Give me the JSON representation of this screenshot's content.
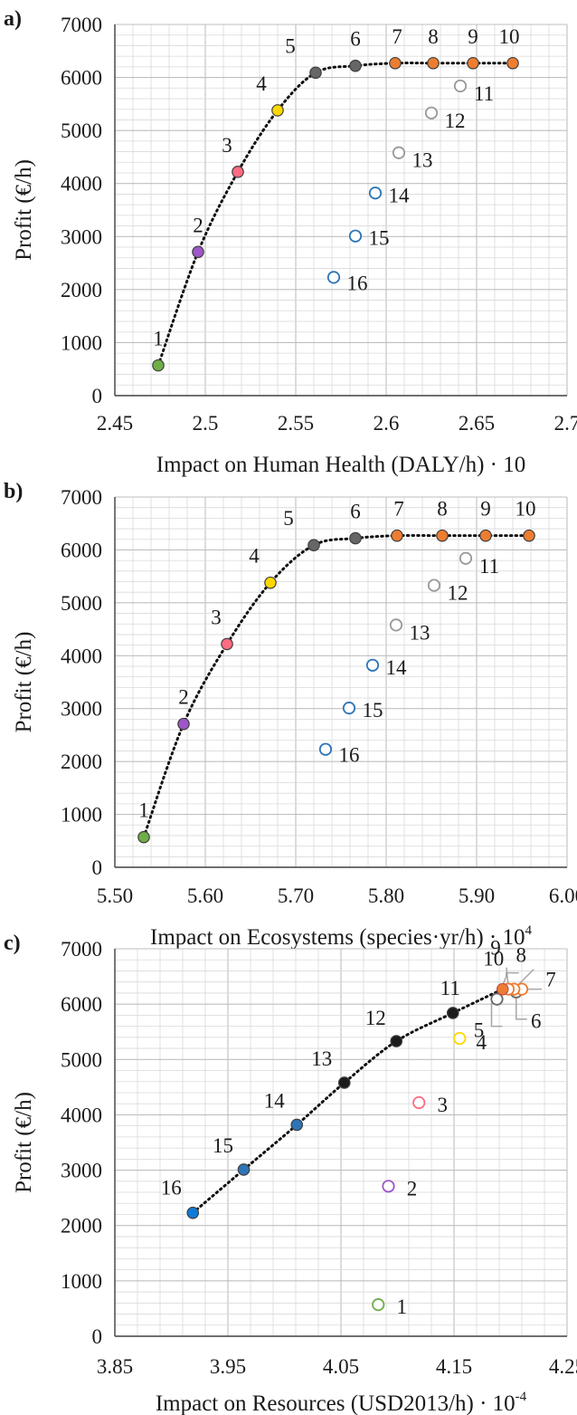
{
  "chart_data": [
    {
      "type": "scatter",
      "panel_label": "a)",
      "title": "",
      "xlabel": "Impact on Human Health (DALY/h) · 10",
      "ylabel": "Profit (€/h)",
      "xlim": [
        2.45,
        2.7
      ],
      "ylim": [
        0,
        7000
      ],
      "xticks": [
        "2.45",
        "2.5",
        "2.55",
        "2.6",
        "2.65",
        "2.7"
      ],
      "yticks": [
        "0",
        "1000",
        "2000",
        "3000",
        "4000",
        "5000",
        "6000",
        "7000"
      ],
      "grid": true,
      "series": [
        {
          "x": [
            2.474,
            2.496,
            2.518,
            2.54,
            2.561,
            2.583,
            2.605,
            2.626,
            2.648,
            2.67,
            2.641,
            2.625,
            2.607,
            2.594,
            2.583,
            2.571
          ],
          "y": [
            570,
            2710,
            4220,
            5380,
            6090,
            6220,
            6270,
            6270,
            6270,
            6270,
            5840,
            5330,
            4580,
            3820,
            3010,
            2230
          ],
          "labels": [
            "1",
            "2",
            "3",
            "4",
            "5",
            "6",
            "7",
            "8",
            "9",
            "10",
            "11",
            "12",
            "13",
            "14",
            "15",
            "16"
          ]
        }
      ],
      "trend_points": 10
    },
    {
      "type": "scatter",
      "panel_label": "b)",
      "title": "",
      "xlabel": "Impact on Ecosystems (species·yr/h) · 10",
      "xlabel_sup": "4",
      "ylabel": "Profit (€/h)",
      "xlim": [
        5.5,
        6.0
      ],
      "ylim": [
        0,
        7000
      ],
      "xticks": [
        "5.50",
        "5.60",
        "5.70",
        "5.80",
        "5.90",
        "6.00"
      ],
      "yticks": [
        "0",
        "1000",
        "2000",
        "3000",
        "4000",
        "5000",
        "6000",
        "7000"
      ],
      "grid": true,
      "series": [
        {
          "x": [
            5.532,
            5.576,
            5.624,
            5.672,
            5.72,
            5.766,
            5.812,
            5.862,
            5.91,
            5.958,
            5.888,
            5.853,
            5.811,
            5.785,
            5.759,
            5.733
          ],
          "y": [
            570,
            2710,
            4220,
            5380,
            6090,
            6220,
            6270,
            6270,
            6270,
            6270,
            5840,
            5330,
            4580,
            3820,
            3010,
            2230
          ],
          "labels": [
            "1",
            "2",
            "3",
            "4",
            "5",
            "6",
            "7",
            "8",
            "9",
            "10",
            "11",
            "12",
            "13",
            "14",
            "15",
            "16"
          ]
        }
      ],
      "trend_points": 10
    },
    {
      "type": "scatter",
      "panel_label": "c)",
      "title": "",
      "xlabel": "Impact on Resources (USD2013/h) · 10",
      "xlabel_sup": "-4",
      "ylabel": "Profit (€/h)",
      "xlim": [
        3.85,
        4.25
      ],
      "ylim": [
        0,
        7000
      ],
      "xticks": [
        "3.85",
        "3.95",
        "4.05",
        "4.15",
        "4.25"
      ],
      "yticks": [
        "0",
        "1000",
        "2000",
        "3000",
        "4000",
        "5000",
        "6000",
        "7000"
      ],
      "grid": true,
      "series": [
        {
          "x": [
            4.083,
            4.092,
            4.119,
            4.155,
            4.188,
            4.205,
            4.21,
            4.203,
            4.198,
            4.193,
            4.149,
            4.099,
            4.053,
            4.011,
            3.964,
            3.919
          ],
          "y": [
            570,
            2710,
            4220,
            5380,
            6090,
            6220,
            6270,
            6270,
            6270,
            6270,
            5840,
            5330,
            4580,
            3820,
            3010,
            2230
          ],
          "labels": [
            "1",
            "2",
            "3",
            "4",
            "5",
            "6",
            "7",
            "8",
            "9",
            "10",
            "11",
            "12",
            "13",
            "14",
            "15",
            "16"
          ]
        }
      ],
      "trend_points": 10
    }
  ],
  "colors": {
    "p1": "#70ad47",
    "p2": "#9e56c8",
    "p3": "#ff6b81",
    "p4": "#ffd700",
    "p5": "#666666",
    "p6": "#666666",
    "p7": "#ed7d31",
    "p8": "#ed7d31",
    "p9": "#ed7d31",
    "p10": "#ed7d31",
    "p11": "#999999",
    "p12": "#999999",
    "p13": "#999999",
    "p14": "#2e75b6",
    "p15": "#2e75b6",
    "p16": "#2e75b6",
    "c11": "#1a1a1a",
    "c12": "#1a1a1a",
    "c13": "#1a1a1a",
    "c14": "#2e75b6",
    "c15": "#2e75b6",
    "c16": "#0f7bd8",
    "grid": "#d9d9d9",
    "text": "#1a1a1a"
  }
}
